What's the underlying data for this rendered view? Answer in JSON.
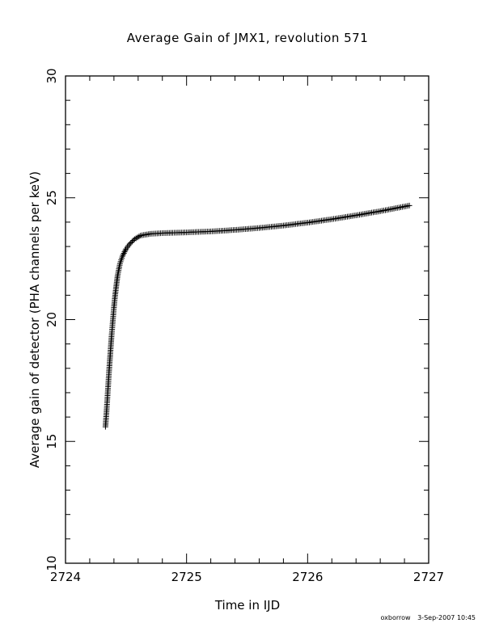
{
  "chart_data": {
    "type": "scatter",
    "title": "Average Gain of JMX1, revolution 571",
    "xlabel": "Time in IJD",
    "ylabel": "Average gain of detector (PHA channels per keV)",
    "xlim": [
      2724,
      2727
    ],
    "ylim": [
      10,
      30
    ],
    "x_ticks": [
      2724,
      2725,
      2726,
      2727
    ],
    "y_ticks": [
      10,
      15,
      20,
      25,
      30
    ],
    "x_tick_labels": [
      "2724",
      "2725",
      "2726",
      "2727"
    ],
    "y_tick_labels": [
      "10",
      "15",
      "20",
      "25",
      "30"
    ],
    "marker": "+",
    "color": "#000000",
    "grid": false,
    "series": [
      {
        "points": [
          [
            2724.33,
            15.6
          ],
          [
            2724.34,
            16.3
          ],
          [
            2724.35,
            17.1
          ],
          [
            2724.36,
            17.9
          ],
          [
            2724.37,
            18.6
          ],
          [
            2724.38,
            19.3
          ],
          [
            2724.39,
            19.9
          ],
          [
            2724.4,
            20.5
          ],
          [
            2724.41,
            21.0
          ],
          [
            2724.42,
            21.4
          ],
          [
            2724.43,
            21.8
          ],
          [
            2724.45,
            22.3
          ],
          [
            2724.47,
            22.6
          ],
          [
            2724.5,
            22.9
          ],
          [
            2724.53,
            23.1
          ],
          [
            2724.57,
            23.3
          ],
          [
            2724.62,
            23.45
          ],
          [
            2724.7,
            23.52
          ],
          [
            2724.8,
            23.55
          ],
          [
            2725.0,
            23.58
          ],
          [
            2725.2,
            23.62
          ],
          [
            2725.4,
            23.68
          ],
          [
            2725.6,
            23.76
          ],
          [
            2725.8,
            23.86
          ],
          [
            2726.0,
            23.98
          ],
          [
            2726.2,
            24.12
          ],
          [
            2726.4,
            24.28
          ],
          [
            2726.6,
            24.45
          ],
          [
            2726.84,
            24.68
          ]
        ]
      }
    ]
  },
  "footer": {
    "user": "oxborrow",
    "timestamp": "3-Sep-2007 10:45"
  }
}
